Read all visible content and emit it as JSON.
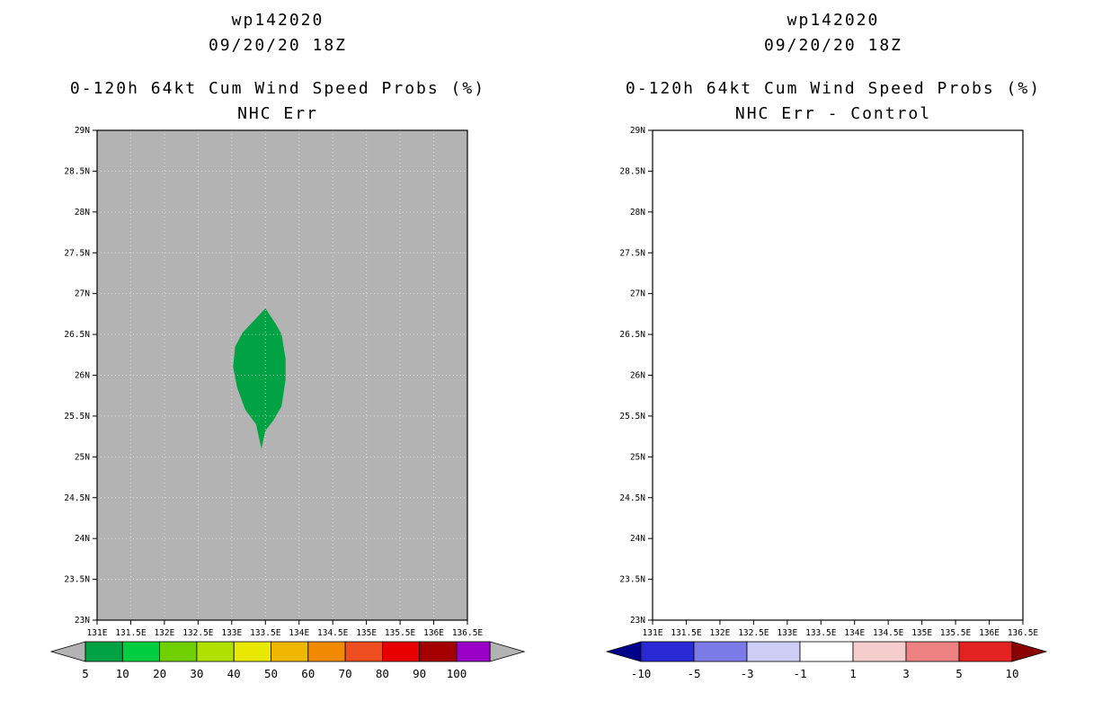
{
  "page": {
    "background": "#ffffff"
  },
  "panels": [
    {
      "title1": "wp142020",
      "title2": "09/20/20 18Z",
      "subtitle1": "0-120h 64kt Cum Wind Speed Probs (%)",
      "subtitle2": "NHC Err",
      "map": {
        "background": "#b3b3b3",
        "grid_color": "rgba(255,255,255,0.6)",
        "border_color": "#000000",
        "lon_min": 131,
        "lon_max": 136.5,
        "lat_min": 23,
        "lat_max": 29,
        "tick_step": 0.5,
        "grid_step": 0.5,
        "lon_labels": [
          "131E",
          "131.5E",
          "132E",
          "132.5E",
          "133E",
          "133.5E",
          "134E",
          "134.5E",
          "135E",
          "135.5E",
          "136E",
          "136.5E"
        ],
        "lat_labels": [
          "23N",
          "23.5N",
          "24N",
          "24.5N",
          "25N",
          "25.5N",
          "26N",
          "26.5N",
          "27N",
          "27.5N",
          "28N",
          "28.5N",
          "29N"
        ]
      },
      "colorbar": {
        "labels": [
          "5",
          "10",
          "20",
          "30",
          "40",
          "50",
          "60",
          "70",
          "80",
          "90",
          "100"
        ],
        "colors": [
          "#00a243",
          "#00cd40",
          "#6fcf00",
          "#b0e000",
          "#e8e800",
          "#efb700",
          "#f28a00",
          "#ef4f20",
          "#e60000",
          "#a40000"
        ],
        "overflow_color": "#9b00c8",
        "left_arrow": "#b3b3b3",
        "right_arrow": "#b3b3b3"
      }
    },
    {
      "title1": "wp142020",
      "title2": "09/20/20 18Z",
      "subtitle1": "0-120h 64kt Cum Wind Speed Probs (%)",
      "subtitle2": "NHC Err - Control",
      "map": {
        "background": "#ffffff",
        "grid_color": "rgba(255,255,255,0)",
        "border_color": "#000000",
        "lon_min": 131,
        "lon_max": 136.5,
        "lat_min": 23,
        "lat_max": 29,
        "tick_step": 0.5,
        "grid_step": 0.5,
        "lon_labels": [
          "131E",
          "131.5E",
          "132E",
          "132.5E",
          "133E",
          "133.5E",
          "134E",
          "134.5E",
          "135E",
          "135.5E",
          "136E",
          "136.5E"
        ],
        "lat_labels": [
          "23N",
          "23.5N",
          "24N",
          "24.5N",
          "25N",
          "25.5N",
          "26N",
          "26.5N",
          "27N",
          "27.5N",
          "28N",
          "28.5N",
          "29N"
        ]
      },
      "colorbar": {
        "labels": [
          "-10",
          "-5",
          "-3",
          "-1",
          "1",
          "3",
          "5",
          "10"
        ],
        "colors": [
          "#2a2ad4",
          "#7b7be8",
          "#cdcdf6",
          "#ffffff",
          "#f6cdcd",
          "#ee8181",
          "#e32222"
        ],
        "overflow_color": null,
        "left_arrow": "#00008b",
        "right_arrow": "#8b0000"
      }
    }
  ],
  "chart_data": [
    {
      "type": "heatmap",
      "storm_id": "wp142020",
      "init_time": "09/20/20 18Z",
      "title": "0-120h 64kt Cum Wind Speed Probs (%)",
      "subtitle": "NHC Err",
      "xlabel": "",
      "ylabel": "",
      "xlim": [
        131,
        136.5
      ],
      "ylim": [
        23,
        29
      ],
      "x_ticks": [
        "131E",
        "131.5E",
        "132E",
        "132.5E",
        "133E",
        "133.5E",
        "134E",
        "134.5E",
        "135E",
        "135.5E",
        "136E",
        "136.5E"
      ],
      "y_ticks": [
        "23N",
        "23.5N",
        "24N",
        "24.5N",
        "25N",
        "25.5N",
        "26N",
        "26.5N",
        "27N",
        "27.5N",
        "28N",
        "28.5N",
        "29N"
      ],
      "levels_percent": [
        5,
        10,
        20,
        30,
        40,
        50,
        60,
        70,
        80,
        90,
        100
      ],
      "grid": true,
      "legend_position": "bottom",
      "filled_regions": [
        {
          "value_range_percent": [
            5,
            10
          ],
          "color": "#00a243",
          "polygon_lon_lat": [
            [
              133.5,
              26.82
            ],
            [
              133.66,
              26.62
            ],
            [
              133.74,
              26.5
            ],
            [
              133.8,
              26.2
            ],
            [
              133.8,
              25.95
            ],
            [
              133.74,
              25.62
            ],
            [
              133.62,
              25.45
            ],
            [
              133.5,
              25.32
            ],
            [
              133.44,
              25.1
            ],
            [
              133.36,
              25.4
            ],
            [
              133.2,
              25.58
            ],
            [
              133.08,
              25.85
            ],
            [
              133.02,
              26.1
            ],
            [
              133.05,
              26.35
            ],
            [
              133.16,
              26.52
            ],
            [
              133.32,
              26.66
            ]
          ]
        }
      ]
    },
    {
      "type": "heatmap",
      "storm_id": "wp142020",
      "init_time": "09/20/20 18Z",
      "title": "0-120h 64kt Cum Wind Speed Probs (%)",
      "subtitle": "NHC Err - Control",
      "xlabel": "",
      "ylabel": "",
      "xlim": [
        131,
        136.5
      ],
      "ylim": [
        23,
        29
      ],
      "x_ticks": [
        "131E",
        "131.5E",
        "132E",
        "132.5E",
        "133E",
        "133.5E",
        "134E",
        "134.5E",
        "135E",
        "135.5E",
        "136E",
        "136.5E"
      ],
      "y_ticks": [
        "23N",
        "23.5N",
        "24N",
        "24.5N",
        "25N",
        "25.5N",
        "26N",
        "26.5N",
        "27N",
        "27.5N",
        "28N",
        "28.5N",
        "29N"
      ],
      "levels": [
        -10,
        -5,
        -3,
        -1,
        1,
        3,
        5,
        10
      ],
      "grid": false,
      "legend_position": "bottom",
      "filled_regions": []
    }
  ]
}
